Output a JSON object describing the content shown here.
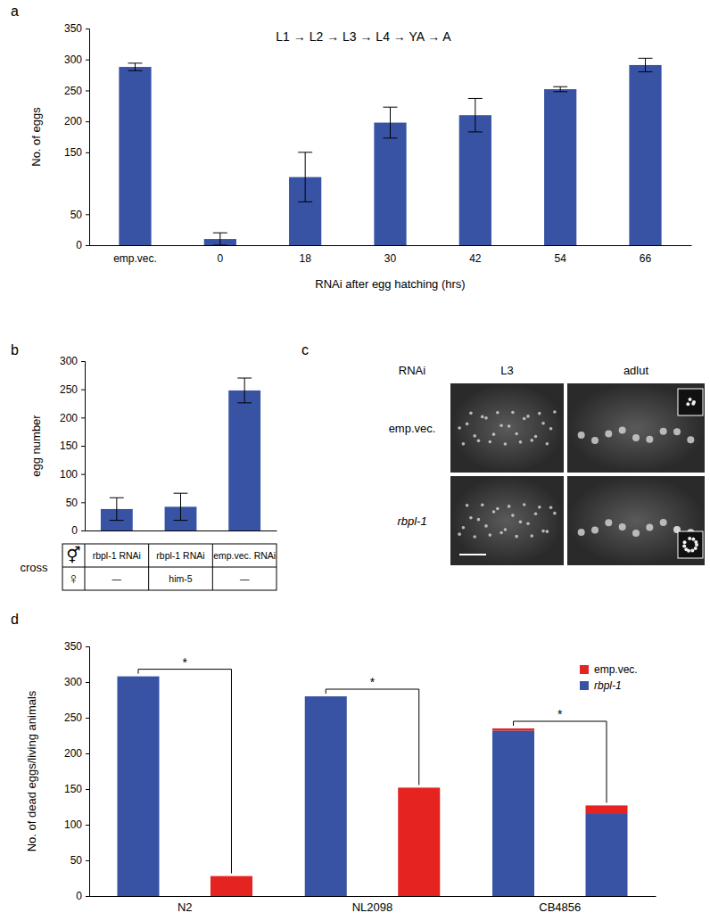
{
  "chart_data": [
    {
      "type": "bar",
      "panel_label": "a",
      "annotation": "L1 → L2 → L3 → L4 → YA → A",
      "categories": [
        "emp.vec.",
        "0",
        "18",
        "30",
        "42",
        "54",
        "66"
      ],
      "values": [
        288,
        10,
        110,
        198,
        210,
        252,
        291
      ],
      "errors": [
        6,
        10,
        40,
        25,
        27,
        4,
        11
      ],
      "color": "#3953a4",
      "x_label": "RNAi after egg hatching (hrs)",
      "y_label": "No. of eggs",
      "ylim": [
        0,
        350
      ],
      "yticks": [
        0,
        50,
        150,
        200,
        250,
        300,
        350
      ]
    },
    {
      "type": "bar",
      "panel_label": "b",
      "values": [
        38,
        42,
        248
      ],
      "errors": [
        20,
        24,
        22
      ],
      "color": "#3953a4",
      "y_label": "egg number",
      "ylim": [
        0,
        300
      ],
      "yticks": [
        0,
        50,
        100,
        150,
        200,
        250,
        300
      ],
      "table": {
        "title": "cross",
        "row_labels": [
          "⚥",
          "♀"
        ],
        "rows": [
          [
            "rbpl-1 RNAi",
            "rbpl-1 RNAi",
            "emp.vec. RNAi"
          ],
          [
            "—",
            "him-5",
            "—"
          ]
        ]
      }
    },
    {
      "type": "bar",
      "panel_label": "d",
      "stacked": true,
      "categories": [
        "N2",
        "NL2098",
        "CB4856"
      ],
      "series": [
        {
          "name": "emp.vec.",
          "color": "#e52421",
          "values": [
            [
              0,
              28
            ],
            [
              0,
              152
            ],
            [
              3,
              12
            ]
          ]
        },
        {
          "name": "rbpl-1",
          "color": "#3953a4",
          "values": [
            [
              308,
              0
            ],
            [
              280,
              0
            ],
            [
              232,
              115
            ]
          ]
        }
      ],
      "annotations": [
        "*",
        "*",
        "*"
      ],
      "y_label": "No. of dead eggs/living animals",
      "ylim": [
        0,
        350
      ],
      "yticks": [
        0,
        50,
        100,
        150,
        200,
        250,
        300,
        350
      ],
      "legend": "top-right"
    }
  ],
  "image_panel": {
    "panel_label": "c",
    "header": "RNAi",
    "columns": [
      "L3",
      "adlut"
    ],
    "rows": [
      "emp.vec.",
      "rbpl-1"
    ]
  }
}
